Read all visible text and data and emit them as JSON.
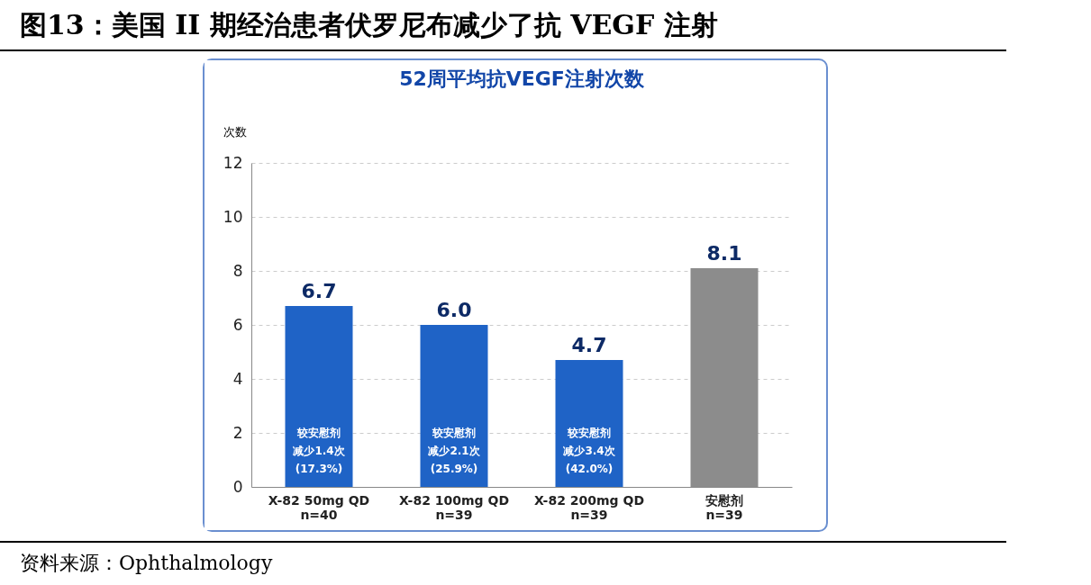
{
  "chart_data": {
    "type": "bar",
    "title": "图13：美国 II 期经治患者伏罗尼布减少了抗 VEGF 注射",
    "subtitle": "52周平均抗VEGF注射次数",
    "ylabel": "次数",
    "categories": [
      "X-82 50mg QD\nn=40",
      "X-82 100mg QD\nn=39",
      "X-82 200mg QD\nn=39",
      "安慰剂\nn=39"
    ],
    "values": [
      6.7,
      6.0,
      4.7,
      8.1
    ],
    "colors": [
      "#1f63c6",
      "#1f63c6",
      "#1f63c6",
      "#8c8c8c"
    ],
    "value_labels": [
      "6.7",
      "6.0",
      "4.7",
      "8.1"
    ],
    "ylim": [
      0,
      12
    ],
    "yticks": [
      0,
      2,
      4,
      6,
      8,
      10,
      12
    ],
    "grid": "y",
    "annotations": [
      "较安慰剂减少1.4次(17.3%)",
      "较安慰剂减少2.1次(25.9%)",
      "较安慰剂减少3.4次(42.0%)",
      "资料来源：Ophthalmology"
    ]
  }
}
